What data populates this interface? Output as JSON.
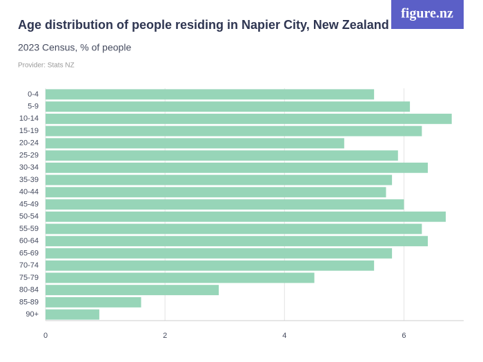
{
  "chart_data": {
    "type": "bar",
    "orientation": "horizontal",
    "logo": "figure.nz",
    "title": "Age distribution of people residing in Napier City, New Zealand",
    "subtitle": "2023 Census, % of people",
    "provider": "Provider: Stats NZ",
    "categories": [
      "0-4",
      "5-9",
      "10-14",
      "15-19",
      "20-24",
      "25-29",
      "30-34",
      "35-39",
      "40-44",
      "45-49",
      "50-54",
      "55-59",
      "60-64",
      "65-69",
      "70-74",
      "75-79",
      "80-84",
      "85-89",
      "90+"
    ],
    "values": [
      5.5,
      6.1,
      6.8,
      6.3,
      5.0,
      5.9,
      6.4,
      5.8,
      5.7,
      6.0,
      6.7,
      6.3,
      6.4,
      5.8,
      5.5,
      4.5,
      2.9,
      1.6,
      0.9
    ],
    "color": "#97d5b8",
    "xlim": [
      0,
      7
    ],
    "xticks": [
      0,
      2,
      4,
      6
    ],
    "grid": true
  }
}
